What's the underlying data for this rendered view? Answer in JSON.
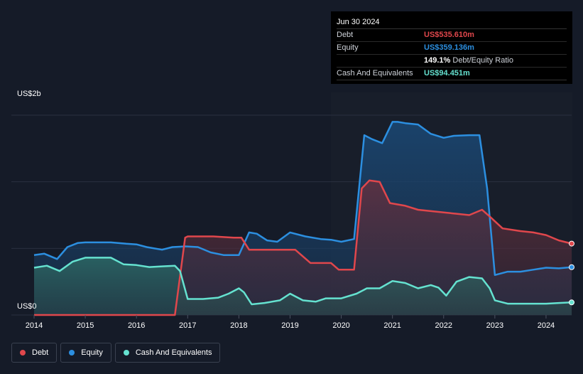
{
  "tooltip": {
    "date": "Jun 30 2024",
    "debt_label": "Debt",
    "debt_value": "US$535.610m",
    "equity_label": "Equity",
    "equity_value": "US$359.136m",
    "ratio_value": "149.1%",
    "ratio_label": "Debt/Equity Ratio",
    "cash_label": "Cash And Equivalents",
    "cash_value": "US$94.451m"
  },
  "colors": {
    "debt": "#e0474c",
    "equity": "#2c8fe0",
    "cash": "#65e2d0",
    "background": "#151b28"
  },
  "legend": [
    {
      "label": "Debt",
      "color": "#e0474c"
    },
    {
      "label": "Equity",
      "color": "#2c8fe0"
    },
    {
      "label": "Cash And Equivalents",
      "color": "#65e2d0"
    }
  ],
  "chart_data": {
    "type": "area",
    "y_top_label": "US$2b",
    "y_bottom_label": "US$0",
    "ylim": [
      0,
      1.5
    ],
    "x_ticks": [
      "2014",
      "2015",
      "2016",
      "2017",
      "2018",
      "2019",
      "2020",
      "2021",
      "2022",
      "2023",
      "2024"
    ],
    "xlim": [
      2014.0,
      2024.5
    ],
    "series": [
      {
        "name": "Debt",
        "points": [
          [
            2014.0,
            0
          ],
          [
            2014.5,
            0
          ],
          [
            2015.0,
            0
          ],
          [
            2015.5,
            0
          ],
          [
            2016.0,
            0
          ],
          [
            2016.5,
            0
          ],
          [
            2016.75,
            0
          ],
          [
            2016.95,
            0.58
          ],
          [
            2017.0,
            0.59
          ],
          [
            2017.5,
            0.59
          ],
          [
            2017.9,
            0.58
          ],
          [
            2018.05,
            0.58
          ],
          [
            2018.2,
            0.49
          ],
          [
            2018.5,
            0.49
          ],
          [
            2018.9,
            0.49
          ],
          [
            2019.1,
            0.49
          ],
          [
            2019.4,
            0.39
          ],
          [
            2019.8,
            0.39
          ],
          [
            2019.95,
            0.34
          ],
          [
            2020.25,
            0.34
          ],
          [
            2020.4,
            0.95
          ],
          [
            2020.55,
            1.01
          ],
          [
            2020.75,
            1.0
          ],
          [
            2020.95,
            0.84
          ],
          [
            2021.25,
            0.82
          ],
          [
            2021.5,
            0.79
          ],
          [
            2021.75,
            0.78
          ],
          [
            2022.0,
            0.77
          ],
          [
            2022.25,
            0.76
          ],
          [
            2022.5,
            0.75
          ],
          [
            2022.75,
            0.79
          ],
          [
            2022.9,
            0.74
          ],
          [
            2023.15,
            0.65
          ],
          [
            2023.5,
            0.63
          ],
          [
            2023.75,
            0.62
          ],
          [
            2024.0,
            0.6
          ],
          [
            2024.25,
            0.56
          ],
          [
            2024.5,
            0.536
          ]
        ]
      },
      {
        "name": "Equity",
        "points": [
          [
            2014.0,
            0.45
          ],
          [
            2014.2,
            0.46
          ],
          [
            2014.45,
            0.42
          ],
          [
            2014.65,
            0.51
          ],
          [
            2014.85,
            0.54
          ],
          [
            2015.0,
            0.545
          ],
          [
            2015.5,
            0.545
          ],
          [
            2015.8,
            0.535
          ],
          [
            2016.0,
            0.53
          ],
          [
            2016.2,
            0.51
          ],
          [
            2016.5,
            0.49
          ],
          [
            2016.7,
            0.51
          ],
          [
            2016.95,
            0.515
          ],
          [
            2017.2,
            0.51
          ],
          [
            2017.45,
            0.47
          ],
          [
            2017.7,
            0.45
          ],
          [
            2018.0,
            0.45
          ],
          [
            2018.2,
            0.62
          ],
          [
            2018.35,
            0.61
          ],
          [
            2018.55,
            0.56
          ],
          [
            2018.75,
            0.55
          ],
          [
            2019.0,
            0.62
          ],
          [
            2019.3,
            0.59
          ],
          [
            2019.6,
            0.57
          ],
          [
            2019.8,
            0.565
          ],
          [
            2020.0,
            0.55
          ],
          [
            2020.25,
            0.57
          ],
          [
            2020.45,
            1.35
          ],
          [
            2020.6,
            1.32
          ],
          [
            2020.8,
            1.29
          ],
          [
            2021.0,
            1.45
          ],
          [
            2021.1,
            1.45
          ],
          [
            2021.25,
            1.44
          ],
          [
            2021.5,
            1.43
          ],
          [
            2021.75,
            1.36
          ],
          [
            2022.0,
            1.33
          ],
          [
            2022.2,
            1.345
          ],
          [
            2022.5,
            1.35
          ],
          [
            2022.7,
            1.35
          ],
          [
            2022.85,
            0.95
          ],
          [
            2023.0,
            0.3
          ],
          [
            2023.25,
            0.325
          ],
          [
            2023.5,
            0.325
          ],
          [
            2023.75,
            0.34
          ],
          [
            2024.0,
            0.355
          ],
          [
            2024.25,
            0.35
          ],
          [
            2024.5,
            0.359
          ]
        ]
      },
      {
        "name": "Cash And Equivalents",
        "points": [
          [
            2014.0,
            0.355
          ],
          [
            2014.25,
            0.37
          ],
          [
            2014.5,
            0.33
          ],
          [
            2014.75,
            0.4
          ],
          [
            2015.0,
            0.43
          ],
          [
            2015.5,
            0.43
          ],
          [
            2015.75,
            0.38
          ],
          [
            2016.0,
            0.375
          ],
          [
            2016.25,
            0.36
          ],
          [
            2016.5,
            0.365
          ],
          [
            2016.75,
            0.37
          ],
          [
            2016.85,
            0.33
          ],
          [
            2017.0,
            0.12
          ],
          [
            2017.3,
            0.12
          ],
          [
            2017.6,
            0.13
          ],
          [
            2017.8,
            0.16
          ],
          [
            2018.0,
            0.2
          ],
          [
            2018.1,
            0.17
          ],
          [
            2018.25,
            0.08
          ],
          [
            2018.5,
            0.09
          ],
          [
            2018.8,
            0.11
          ],
          [
            2019.0,
            0.16
          ],
          [
            2019.25,
            0.11
          ],
          [
            2019.5,
            0.1
          ],
          [
            2019.7,
            0.125
          ],
          [
            2020.0,
            0.125
          ],
          [
            2020.3,
            0.16
          ],
          [
            2020.5,
            0.2
          ],
          [
            2020.75,
            0.2
          ],
          [
            2021.0,
            0.255
          ],
          [
            2021.25,
            0.24
          ],
          [
            2021.5,
            0.2
          ],
          [
            2021.75,
            0.225
          ],
          [
            2021.9,
            0.205
          ],
          [
            2022.05,
            0.145
          ],
          [
            2022.25,
            0.25
          ],
          [
            2022.5,
            0.285
          ],
          [
            2022.75,
            0.275
          ],
          [
            2022.9,
            0.2
          ],
          [
            2023.0,
            0.11
          ],
          [
            2023.25,
            0.085
          ],
          [
            2023.5,
            0.085
          ],
          [
            2023.75,
            0.085
          ],
          [
            2024.0,
            0.085
          ],
          [
            2024.25,
            0.09
          ],
          [
            2024.5,
            0.0945
          ]
        ]
      }
    ]
  }
}
